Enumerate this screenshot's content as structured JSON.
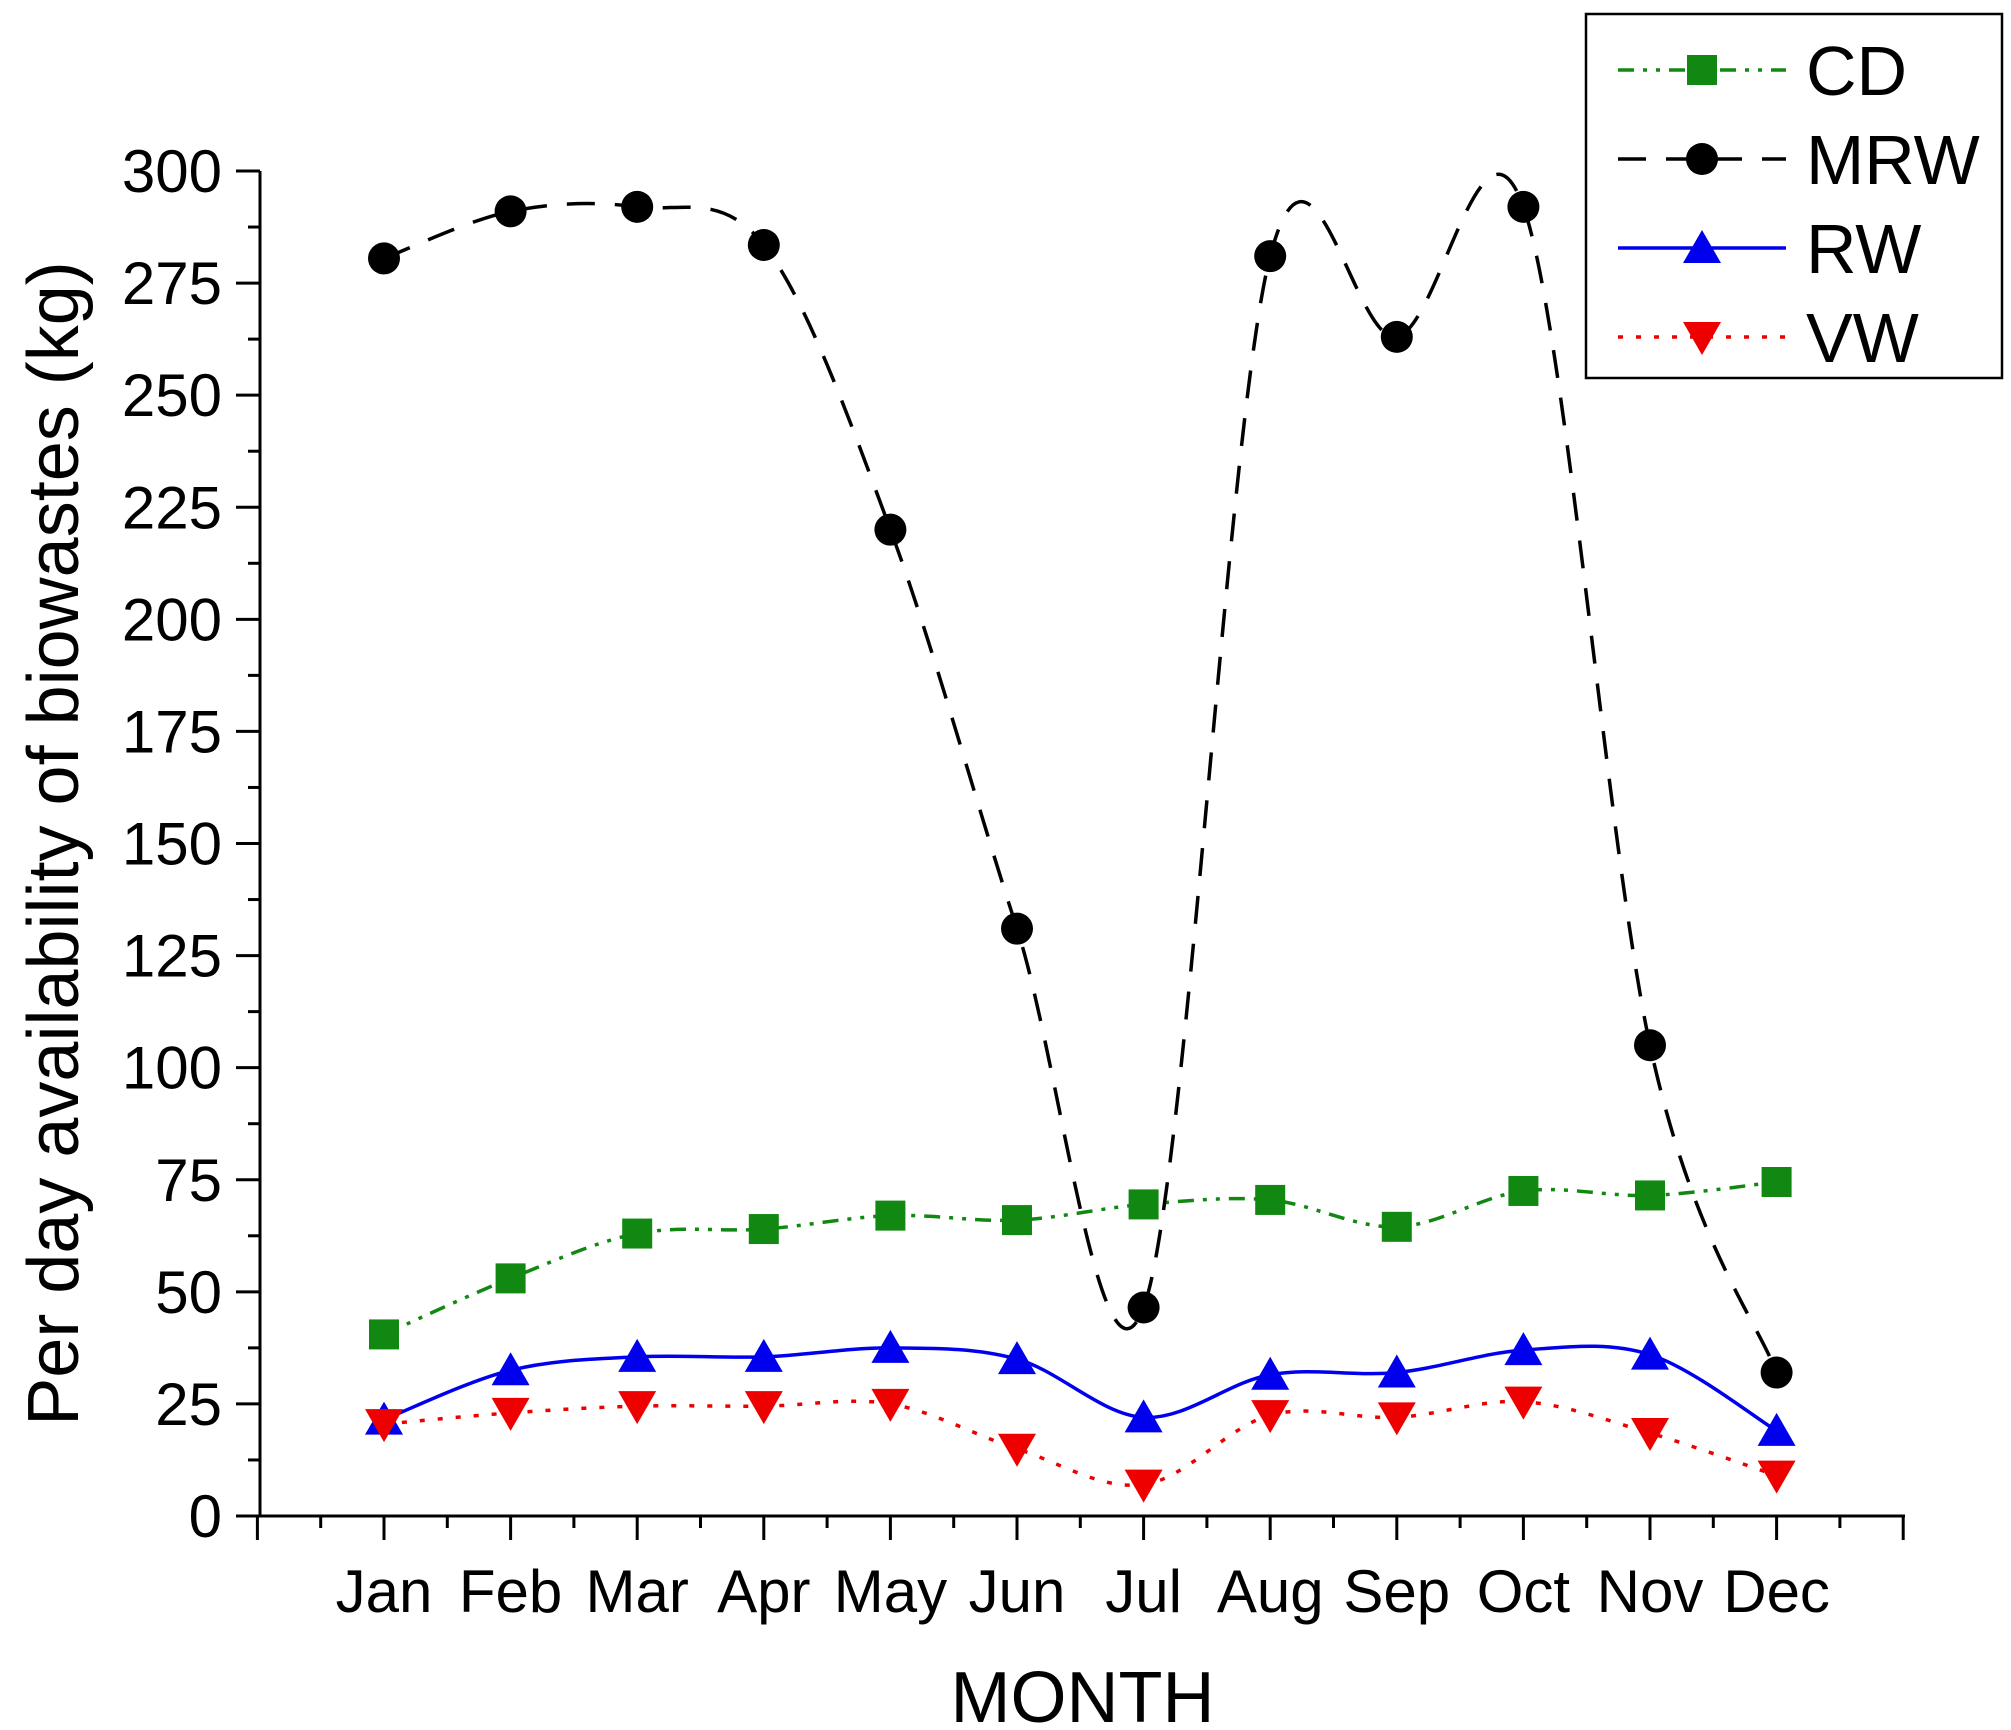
{
  "chart_data": {
    "type": "line",
    "title": "",
    "xlabel": "MONTH",
    "ylabel": "Per day availability of biowastes (kg)",
    "categories": [
      "Jan",
      "Feb",
      "Mar",
      "Apr",
      "May",
      "Jun",
      "Jul",
      "Aug",
      "Sep",
      "Oct",
      "Nov",
      "Dec"
    ],
    "ylim": [
      0,
      300
    ],
    "yticks": [
      0,
      25,
      50,
      75,
      100,
      125,
      150,
      175,
      200,
      225,
      250,
      275,
      300
    ],
    "ytick_labels": [
      "0",
      "25",
      "50",
      "75",
      "100",
      "125",
      "150",
      "175",
      "200",
      "225",
      "250",
      "275",
      "300"
    ],
    "grid": false,
    "legend_position": "top-right",
    "series": [
      {
        "name": "CD",
        "color": "#118811",
        "line_style": "dash-dot-dot",
        "marker": "square",
        "values": [
          40.5,
          53,
          63,
          64,
          67,
          66,
          69.5,
          70.5,
          64.5,
          72.5,
          71.5,
          74.5
        ]
      },
      {
        "name": "MRW",
        "color": "#000000",
        "line_style": "dashed",
        "marker": "circle",
        "values": [
          280.5,
          291,
          292,
          283.5,
          220,
          131,
          46.5,
          281,
          263,
          292,
          105,
          32
        ]
      },
      {
        "name": "RW",
        "color": "#0000ee",
        "line_style": "solid",
        "marker": "triangle-up",
        "values": [
          21.5,
          32.5,
          35.5,
          35.5,
          37.5,
          35,
          22,
          31.5,
          32,
          37,
          36,
          19
        ]
      },
      {
        "name": "VW",
        "color": "#ee0000",
        "line_style": "dotted",
        "marker": "triangle-down",
        "values": [
          20.5,
          23,
          24.5,
          24.5,
          25,
          15,
          7,
          22.5,
          22,
          25.5,
          18.5,
          9
        ]
      }
    ]
  }
}
